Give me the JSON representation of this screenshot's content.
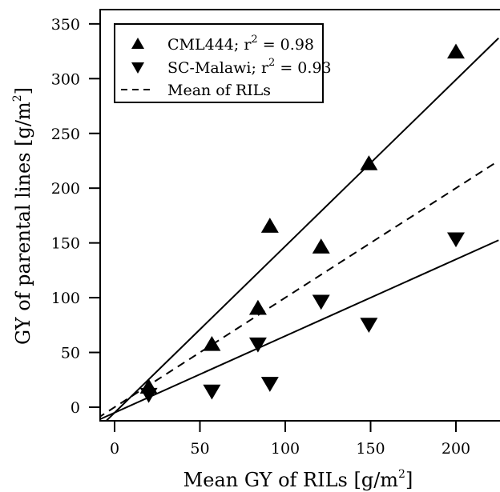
{
  "chart_data": {
    "type": "scatter",
    "xlabel": "Mean GY of RILs [g/m",
    "xlabel_sup": "2",
    "xlabel_end": "]",
    "ylabel": "GY of parental lines [g/m",
    "ylabel_sup": "2",
    "ylabel_end": "]",
    "xlim": [
      -10,
      225
    ],
    "ylim": [
      -12,
      360
    ],
    "x_ticks": [
      0,
      50,
      100,
      150,
      200
    ],
    "y_ticks": [
      0,
      50,
      100,
      150,
      200,
      250,
      300,
      350
    ],
    "grid": false,
    "legend_position": "top-left",
    "series": [
      {
        "name": "CML444",
        "legend_stat": "; r",
        "legend_sup": "2",
        "legend_value": " = 0.98",
        "marker": "triangle-up",
        "x": [
          20,
          57,
          84,
          91,
          121,
          149,
          200
        ],
        "y": [
          18,
          57,
          90,
          165,
          146,
          222,
          324
        ],
        "fit": {
          "slope": 1.52,
          "intercept": -5
        }
      },
      {
        "name": "SC-Malawi",
        "legend_stat": "; r",
        "legend_sup": "2",
        "legend_value": " = 0.93",
        "marker": "triangle-down",
        "x": [
          20,
          57,
          84,
          91,
          121,
          149,
          200
        ],
        "y": [
          12,
          15,
          58,
          22,
          97,
          76,
          154
        ],
        "fit": {
          "slope": 0.7,
          "intercept": -5
        }
      }
    ],
    "reference_line": {
      "name": "Mean of RILs",
      "style": "dashed",
      "slope": 1,
      "intercept": 0
    },
    "colors": {
      "ink": "#000000",
      "background": "#ffffff"
    }
  }
}
